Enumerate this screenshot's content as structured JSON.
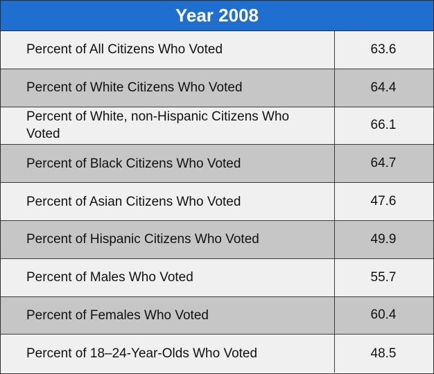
{
  "chart_data": {
    "type": "table",
    "title": "Year 2008",
    "rows": [
      {
        "label": "Percent of All Citizens Who Voted",
        "value": "63.6"
      },
      {
        "label": "Percent of White Citizens Who Voted",
        "value": "64.4"
      },
      {
        "label": "Percent of White, non-Hispanic Citizens Who Voted",
        "value": "66.1"
      },
      {
        "label": "Percent of Black Citizens Who Voted",
        "value": "64.7"
      },
      {
        "label": "Percent of Asian Citizens Who Voted",
        "value": "47.6"
      },
      {
        "label": "Percent of Hispanic Citizens Who Voted",
        "value": "49.9"
      },
      {
        "label": "Percent of Males Who Voted",
        "value": "55.7"
      },
      {
        "label": "Percent of Females Who Voted",
        "value": "60.4"
      },
      {
        "label": "Percent of 18–24-Year-Olds Who Voted",
        "value": "48.5"
      }
    ],
    "colors": {
      "header_bg": "#1f6fd1",
      "header_text": "#ffffff",
      "row_light": "#f0f0f0",
      "row_dark": "#c6c6c6"
    }
  }
}
